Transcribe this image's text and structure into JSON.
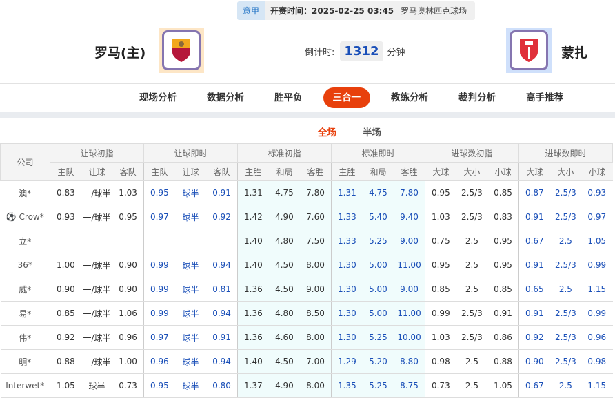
{
  "match": {
    "league": "意甲",
    "kickoff": "开赛时间：2025-02-25 03:45",
    "venue": "罗马奥林匹克球场",
    "home": "罗马(主)",
    "away": "蒙扎",
    "countdown_label": "倒计时:",
    "countdown_value": "1312",
    "countdown_unit": "分钟"
  },
  "nav": [
    "现场分析",
    "数据分析",
    "胜平负",
    "三合一",
    "教练分析",
    "裁判分析",
    "高手推荐"
  ],
  "nav_active": 3,
  "subtabs": [
    "全场",
    "半场"
  ],
  "table": {
    "company_header": "公司",
    "groups": [
      "让球初指",
      "让球即时",
      "标准初指",
      "标准即时",
      "进球数初指",
      "进球数即时"
    ],
    "sub_headers": [
      [
        "主队",
        "让球",
        "客队"
      ],
      [
        "主队",
        "让球",
        "客队"
      ],
      [
        "主胜",
        "和局",
        "客胜"
      ],
      [
        "主胜",
        "和局",
        "客胜"
      ],
      [
        "大球",
        "大小",
        "小球"
      ],
      [
        "大球",
        "大小",
        "小球"
      ]
    ],
    "rows": [
      {
        "company": "澳*",
        "v": [
          "0.83",
          "一/球半",
          "1.03",
          "0.95",
          "球半",
          "0.91",
          "1.31",
          "4.75",
          "7.80",
          "1.31",
          "4.75",
          "7.80",
          "0.95",
          "2.5/3",
          "0.85",
          "0.87",
          "2.5/3",
          "0.93"
        ]
      },
      {
        "company": "Crow*",
        "icon": true,
        "v": [
          "0.93",
          "一/球半",
          "0.95",
          "0.97",
          "球半",
          "0.92",
          "1.42",
          "4.90",
          "7.60",
          "1.33",
          "5.40",
          "9.40",
          "1.03",
          "2.5/3",
          "0.83",
          "0.91",
          "2.5/3",
          "0.97"
        ]
      },
      {
        "company": "立*",
        "v": [
          "",
          "",
          "",
          "",
          "",
          "",
          "1.40",
          "4.80",
          "7.50",
          "1.33",
          "5.25",
          "9.00",
          "0.75",
          "2.5",
          "0.95",
          "0.67",
          "2.5",
          "1.05"
        ]
      },
      {
        "company": "36*",
        "v": [
          "1.00",
          "一/球半",
          "0.90",
          "0.99",
          "球半",
          "0.94",
          "1.40",
          "4.50",
          "8.00",
          "1.30",
          "5.00",
          "11.00",
          "0.95",
          "2.5",
          "0.95",
          "0.91",
          "2.5/3",
          "0.99"
        ]
      },
      {
        "company": "威*",
        "v": [
          "0.90",
          "一/球半",
          "0.90",
          "0.99",
          "球半",
          "0.81",
          "1.36",
          "4.50",
          "9.00",
          "1.30",
          "5.00",
          "9.00",
          "0.85",
          "2.5",
          "0.85",
          "0.65",
          "2.5",
          "1.15"
        ]
      },
      {
        "company": "易*",
        "v": [
          "0.85",
          "一/球半",
          "1.06",
          "0.99",
          "球半",
          "0.94",
          "1.36",
          "4.80",
          "8.50",
          "1.30",
          "5.00",
          "11.00",
          "0.99",
          "2.5/3",
          "0.91",
          "0.91",
          "2.5/3",
          "0.99"
        ]
      },
      {
        "company": "伟*",
        "v": [
          "0.92",
          "一/球半",
          "0.96",
          "0.97",
          "球半",
          "0.91",
          "1.36",
          "4.60",
          "8.00",
          "1.30",
          "5.25",
          "10.00",
          "1.03",
          "2.5/3",
          "0.86",
          "0.92",
          "2.5/3",
          "0.96"
        ]
      },
      {
        "company": "明*",
        "v": [
          "0.88",
          "一/球半",
          "1.00",
          "0.96",
          "球半",
          "0.94",
          "1.40",
          "4.50",
          "7.00",
          "1.29",
          "5.20",
          "8.80",
          "0.98",
          "2.5",
          "0.88",
          "0.90",
          "2.5/3",
          "0.98"
        ]
      },
      {
        "company": "Interwet*",
        "v": [
          "1.05",
          "球半",
          "0.73",
          "0.95",
          "球半",
          "0.80",
          "1.37",
          "4.90",
          "8.00",
          "1.35",
          "5.25",
          "8.75",
          "0.73",
          "2.5",
          "1.05",
          "0.67",
          "2.5",
          "1.15"
        ]
      }
    ]
  },
  "colors": {
    "accent": "#e8400c",
    "live_value": "#1a4fb8",
    "standard_bg": "#f0fcfc"
  }
}
